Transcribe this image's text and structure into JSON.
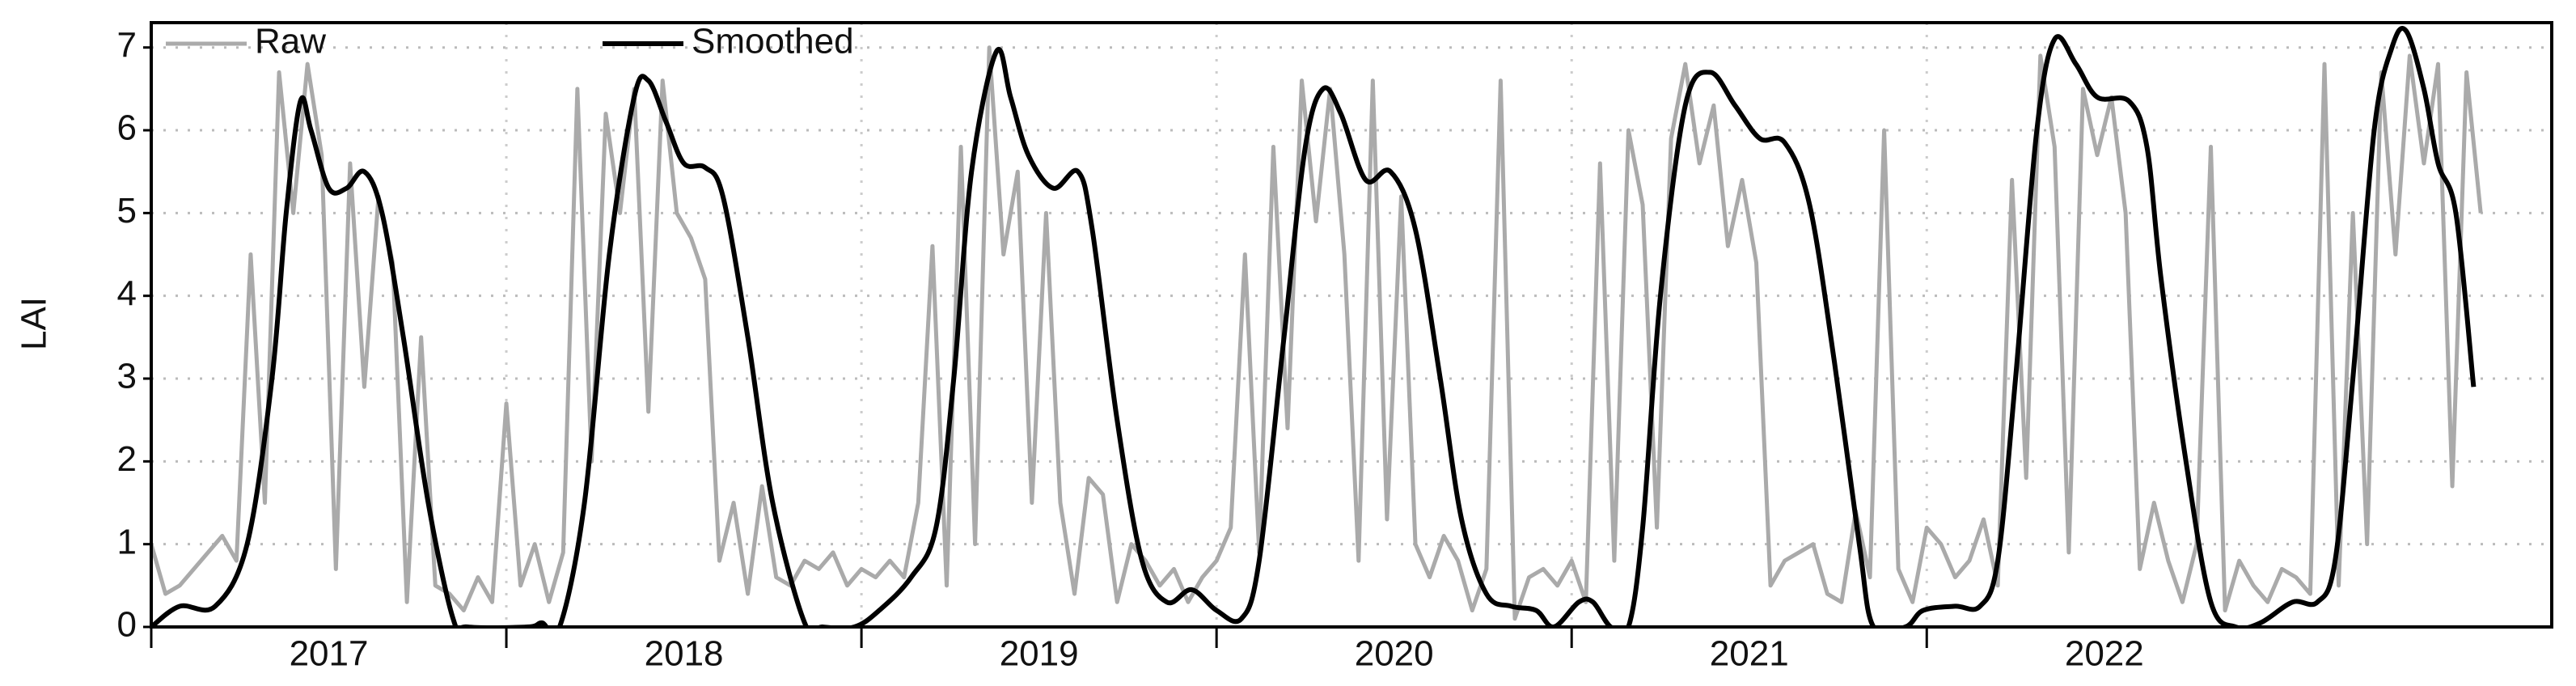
{
  "chart_data": {
    "type": "line",
    "y_label": "LAI",
    "xlim": [
      2017.0,
      2023.76
    ],
    "ylim": [
      0,
      7.3
    ],
    "xticks": [
      2017,
      2018,
      2019,
      2020,
      2021,
      2022
    ],
    "yticks": [
      0,
      1,
      2,
      3,
      4,
      5,
      6,
      7
    ],
    "grid": true,
    "legend": "upper left",
    "series": [
      {
        "name": "Raw",
        "color": "#aaaaaa",
        "x": [
          2017.0,
          2017.04,
          2017.08,
          2017.12,
          2017.16,
          2017.2,
          2017.24,
          2017.28,
          2017.32,
          2017.36,
          2017.4,
          2017.44,
          2017.48,
          2017.52,
          2017.56,
          2017.6,
          2017.64,
          2017.68,
          2017.72,
          2017.76,
          2017.8,
          2017.84,
          2017.88,
          2017.92,
          2017.96,
          2018.0,
          2018.04,
          2018.08,
          2018.12,
          2018.16,
          2018.2,
          2018.24,
          2018.28,
          2018.32,
          2018.36,
          2018.4,
          2018.44,
          2018.48,
          2018.52,
          2018.56,
          2018.6,
          2018.64,
          2018.68,
          2018.72,
          2018.76,
          2018.8,
          2018.84,
          2018.88,
          2018.92,
          2018.96,
          2019.0,
          2019.04,
          2019.08,
          2019.12,
          2019.16,
          2019.2,
          2019.24,
          2019.28,
          2019.32,
          2019.36,
          2019.4,
          2019.44,
          2019.48,
          2019.52,
          2019.56,
          2019.6,
          2019.64,
          2019.68,
          2019.72,
          2019.76,
          2019.8,
          2019.84,
          2019.88,
          2019.92,
          2019.96,
          2020.0,
          2020.04,
          2020.08,
          2020.12,
          2020.16,
          2020.2,
          2020.24,
          2020.28,
          2020.32,
          2020.36,
          2020.4,
          2020.44,
          2020.48,
          2020.52,
          2020.56,
          2020.6,
          2020.64,
          2020.68,
          2020.72,
          2020.76,
          2020.8,
          2020.84,
          2020.88,
          2020.92,
          2020.96,
          2021.0,
          2021.04,
          2021.08,
          2021.12,
          2021.16,
          2021.2,
          2021.24,
          2021.28,
          2021.32,
          2021.36,
          2021.4,
          2021.44,
          2021.48,
          2021.52,
          2021.56,
          2021.6,
          2021.64,
          2021.68,
          2021.72,
          2021.76,
          2021.8,
          2021.84,
          2021.88,
          2021.92,
          2021.96,
          2022.0,
          2022.04,
          2022.08,
          2022.12,
          2022.16,
          2022.2,
          2022.24,
          2022.28,
          2022.32,
          2022.36,
          2022.4,
          2022.44,
          2022.48,
          2022.52,
          2022.56,
          2022.6,
          2022.64,
          2022.68,
          2022.72,
          2022.76,
          2022.8,
          2022.84,
          2022.88,
          2022.92,
          2022.96,
          2023.0,
          2023.04,
          2023.08,
          2023.12,
          2023.16,
          2023.2,
          2023.24,
          2023.28,
          2023.32,
          2023.36,
          2023.4,
          2023.44,
          2023.48,
          2023.52,
          2023.56
        ],
        "values": [
          1.0,
          0.4,
          0.5,
          0.7,
          0.9,
          1.1,
          0.8,
          4.5,
          1.5,
          6.7,
          5.0,
          6.8,
          5.7,
          0.7,
          5.6,
          2.9,
          5.2,
          4.4,
          0.3,
          3.5,
          0.5,
          0.4,
          0.2,
          0.6,
          0.3,
          2.7,
          0.5,
          1.0,
          0.3,
          0.9,
          6.5,
          2.0,
          6.2,
          5.0,
          6.5,
          2.6,
          6.6,
          5.0,
          4.7,
          4.2,
          0.8,
          1.5,
          0.4,
          1.7,
          0.6,
          0.5,
          0.8,
          0.7,
          0.9,
          0.5,
          0.7,
          0.6,
          0.8,
          0.6,
          1.5,
          4.6,
          0.5,
          5.8,
          1.0,
          7.0,
          4.5,
          5.5,
          1.5,
          5.0,
          1.5,
          0.4,
          1.8,
          1.6,
          0.3,
          1.0,
          0.8,
          0.5,
          0.7,
          0.3,
          0.6,
          0.8,
          1.2,
          4.5,
          0.9,
          5.8,
          2.4,
          6.6,
          4.9,
          6.5,
          4.5,
          0.8,
          6.6,
          1.3,
          5.2,
          1.0,
          0.6,
          1.1,
          0.8,
          0.2,
          0.7,
          6.6,
          0.1,
          0.6,
          0.7,
          0.5,
          0.8,
          0.3,
          5.6,
          0.8,
          6.0,
          5.1,
          1.2,
          5.9,
          6.8,
          5.6,
          6.3,
          4.6,
          5.4,
          4.4,
          0.5,
          0.8,
          0.9,
          1.0,
          0.4,
          0.3,
          1.4,
          0.6,
          6.0,
          0.7,
          0.3,
          1.2,
          1.0,
          0.6,
          0.8,
          1.3,
          0.5,
          5.4,
          1.8,
          6.9,
          5.8,
          0.9,
          6.5,
          5.7,
          6.4,
          5.0,
          0.7,
          1.5,
          0.8,
          0.3,
          1.0,
          5.8,
          0.2,
          0.8,
          0.5,
          0.3,
          0.7,
          0.6,
          0.4,
          6.8,
          0.5,
          5.0,
          1.0,
          6.7,
          4.5,
          6.9,
          5.6,
          6.8,
          1.7,
          6.7,
          5.0
        ]
      },
      {
        "name": "Smoothed",
        "color": "#000000",
        "x": [
          2017.0,
          2017.08,
          2017.18,
          2017.27,
          2017.34,
          2017.38,
          2017.42,
          2017.45,
          2017.5,
          2017.55,
          2017.6,
          2017.65,
          2017.71,
          2017.78,
          2017.85,
          2017.89,
          2018.06,
          2018.1,
          2018.15,
          2018.22,
          2018.29,
          2018.36,
          2018.4,
          2018.45,
          2018.5,
          2018.56,
          2018.61,
          2018.68,
          2018.75,
          2018.84,
          2018.89,
          2018.98,
          2019.05,
          2019.14,
          2019.21,
          2019.26,
          2019.31,
          2019.38,
          2019.42,
          2019.47,
          2019.54,
          2019.61,
          2019.65,
          2019.72,
          2019.79,
          2019.86,
          2019.93,
          2020.0,
          2020.07,
          2020.12,
          2020.19,
          2020.25,
          2020.3,
          2020.35,
          2020.42,
          2020.49,
          2020.56,
          2020.63,
          2020.69,
          2020.76,
          2020.83,
          2020.9,
          2020.95,
          2021.02,
          2021.06,
          2021.11,
          2021.16,
          2021.2,
          2021.25,
          2021.32,
          2021.39,
          2021.46,
          2021.53,
          2021.6,
          2021.67,
          2021.74,
          2021.81,
          2021.85,
          2021.94,
          2021.99,
          2022.08,
          2022.15,
          2022.2,
          2022.25,
          2022.31,
          2022.36,
          2022.42,
          2022.48,
          2022.57,
          2022.62,
          2022.66,
          2022.73,
          2022.8,
          2022.87,
          2022.94,
          2023.03,
          2023.1,
          2023.15,
          2023.2,
          2023.26,
          2023.31,
          2023.35,
          2023.4,
          2023.44,
          2023.49,
          2023.54
        ],
        "values": [
          0,
          0.25,
          0.25,
          1.0,
          3.0,
          5.0,
          6.35,
          6.0,
          5.3,
          5.3,
          5.5,
          5.0,
          3.5,
          1.5,
          0.1,
          0,
          0,
          0.05,
          0,
          1.5,
          4.5,
          6.4,
          6.6,
          6.1,
          5.6,
          5.55,
          5.2,
          3.5,
          1.5,
          0.05,
          0,
          0,
          0.2,
          0.6,
          1.2,
          3.0,
          5.5,
          6.95,
          6.4,
          5.7,
          5.3,
          5.5,
          4.8,
          2.5,
          0.8,
          0.3,
          0.45,
          0.2,
          0.1,
          0.8,
          3.5,
          5.8,
          6.5,
          6.2,
          5.4,
          5.5,
          4.8,
          3.0,
          1.3,
          0.4,
          0.25,
          0.2,
          0,
          0.3,
          0.3,
          0,
          0,
          1.2,
          4.0,
          6.3,
          6.7,
          6.3,
          5.9,
          5.85,
          5.1,
          3.2,
          1.0,
          0,
          0,
          0.2,
          0.25,
          0.25,
          0.8,
          3.0,
          6.0,
          7.1,
          6.8,
          6.4,
          6.35,
          5.8,
          4.2,
          2.0,
          0.3,
          0,
          0.05,
          0.3,
          0.3,
          0.8,
          3.0,
          6.0,
          7.0,
          7.2,
          6.5,
          5.6,
          5.0,
          2.9
        ]
      }
    ]
  }
}
